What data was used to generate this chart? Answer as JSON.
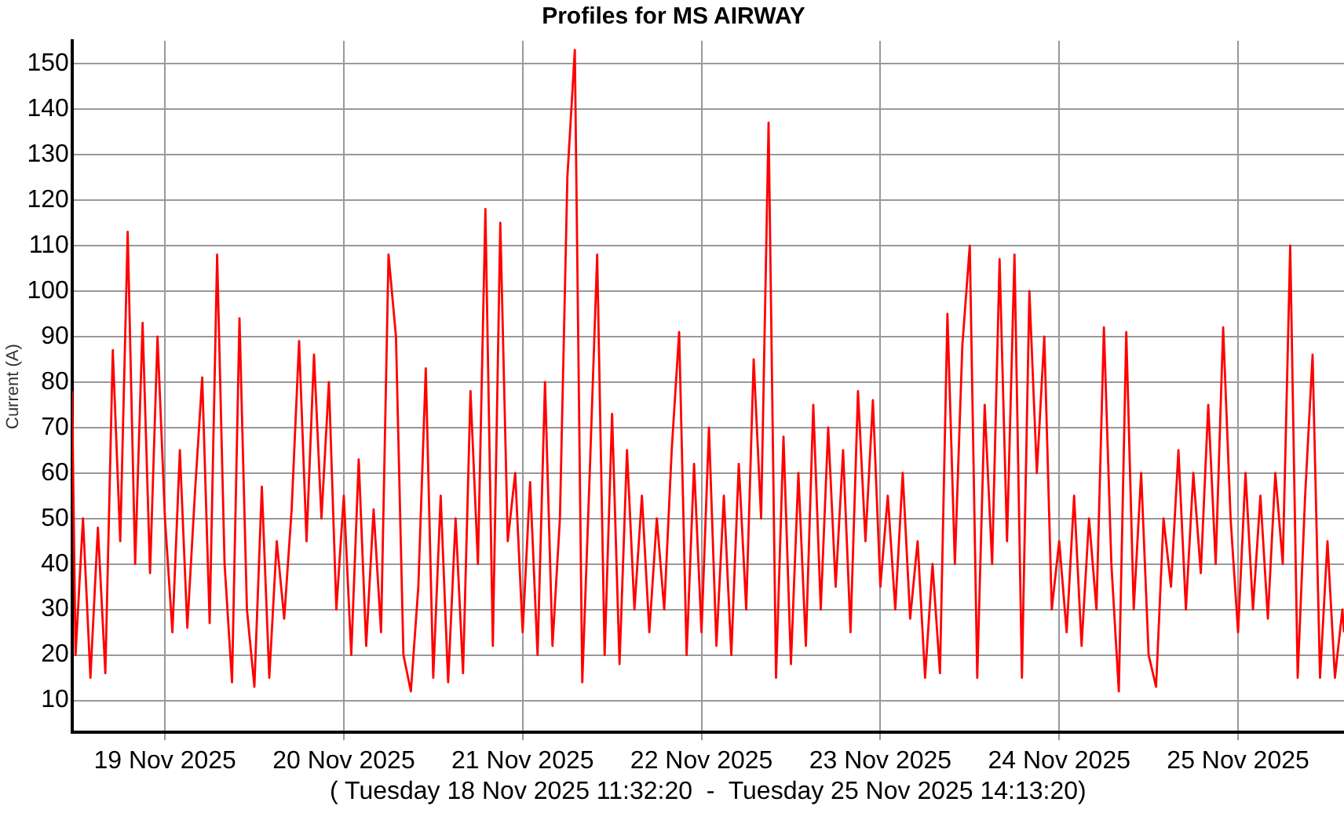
{
  "chart_data": {
    "type": "line",
    "title": "Profiles for MS AIRWAY",
    "xlabel": "( Tuesday 18 Nov 2025 11:32:20  -  Tuesday 25 Nov 2025 14:13:20)",
    "ylabel": "Current (A)",
    "x": [
      "2025-11-18T11:32",
      "2025-11-18T12:00",
      "2025-11-18T13:00",
      "2025-11-18T14:00",
      "2025-11-18T15:00",
      "2025-11-18T16:00",
      "2025-11-18T17:00",
      "2025-11-18T18:00",
      "2025-11-18T19:00",
      "2025-11-18T20:00",
      "2025-11-18T21:00",
      "2025-11-18T22:00",
      "2025-11-18T23:00",
      "2025-11-19T00:00",
      "2025-11-19T01:00",
      "2025-11-19T02:00",
      "2025-11-19T03:00",
      "2025-11-19T04:00",
      "2025-11-19T05:00",
      "2025-11-19T06:00",
      "2025-11-19T07:00",
      "2025-11-19T08:00",
      "2025-11-19T09:00",
      "2025-11-19T10:00",
      "2025-11-19T11:00",
      "2025-11-19T12:00",
      "2025-11-19T13:00",
      "2025-11-19T14:00",
      "2025-11-19T15:00",
      "2025-11-19T16:00",
      "2025-11-19T17:00",
      "2025-11-19T18:00",
      "2025-11-19T19:00",
      "2025-11-19T20:00",
      "2025-11-19T21:00",
      "2025-11-19T22:00",
      "2025-11-19T23:00",
      "2025-11-20T00:00",
      "2025-11-20T01:00",
      "2025-11-20T02:00",
      "2025-11-20T03:00",
      "2025-11-20T04:00",
      "2025-11-20T05:00",
      "2025-11-20T06:00",
      "2025-11-20T07:00",
      "2025-11-20T08:00",
      "2025-11-20T09:00",
      "2025-11-20T10:00",
      "2025-11-20T11:00",
      "2025-11-20T12:00",
      "2025-11-20T13:00",
      "2025-11-20T14:00",
      "2025-11-20T15:00",
      "2025-11-20T16:00",
      "2025-11-20T17:00",
      "2025-11-20T18:00",
      "2025-11-20T19:00",
      "2025-11-20T20:00",
      "2025-11-20T21:00",
      "2025-11-20T22:00",
      "2025-11-20T23:00",
      "2025-11-21T00:00",
      "2025-11-21T01:00",
      "2025-11-21T02:00",
      "2025-11-21T03:00",
      "2025-11-21T04:00",
      "2025-11-21T05:00",
      "2025-11-21T06:00",
      "2025-11-21T07:00",
      "2025-11-21T08:00",
      "2025-11-21T09:00",
      "2025-11-21T10:00",
      "2025-11-21T11:00",
      "2025-11-21T12:00",
      "2025-11-21T13:00",
      "2025-11-21T14:00",
      "2025-11-21T15:00",
      "2025-11-21T16:00",
      "2025-11-21T17:00",
      "2025-11-21T18:00",
      "2025-11-21T19:00",
      "2025-11-21T20:00",
      "2025-11-21T21:00",
      "2025-11-21T22:00",
      "2025-11-21T23:00",
      "2025-11-22T00:00",
      "2025-11-22T01:00",
      "2025-11-22T02:00",
      "2025-11-22T03:00",
      "2025-11-22T04:00",
      "2025-11-22T05:00",
      "2025-11-22T06:00",
      "2025-11-22T07:00",
      "2025-11-22T08:00",
      "2025-11-22T09:00",
      "2025-11-22T10:00",
      "2025-11-22T11:00",
      "2025-11-22T12:00",
      "2025-11-22T13:00",
      "2025-11-22T14:00",
      "2025-11-22T15:00",
      "2025-11-22T16:00",
      "2025-11-22T17:00",
      "2025-11-22T18:00",
      "2025-11-22T19:00",
      "2025-11-22T20:00",
      "2025-11-22T21:00",
      "2025-11-22T22:00",
      "2025-11-22T23:00",
      "2025-11-23T00:00",
      "2025-11-23T01:00",
      "2025-11-23T02:00",
      "2025-11-23T03:00",
      "2025-11-23T04:00",
      "2025-11-23T05:00",
      "2025-11-23T06:00",
      "2025-11-23T07:00",
      "2025-11-23T08:00",
      "2025-11-23T09:00",
      "2025-11-23T10:00",
      "2025-11-23T11:00",
      "2025-11-23T12:00",
      "2025-11-23T13:00",
      "2025-11-23T14:00",
      "2025-11-23T15:00",
      "2025-11-23T16:00",
      "2025-11-23T17:00",
      "2025-11-23T18:00",
      "2025-11-23T19:00",
      "2025-11-23T20:00",
      "2025-11-23T21:00",
      "2025-11-23T22:00",
      "2025-11-23T23:00",
      "2025-11-24T00:00",
      "2025-11-24T01:00",
      "2025-11-24T02:00",
      "2025-11-24T03:00",
      "2025-11-24T04:00",
      "2025-11-24T05:00",
      "2025-11-24T06:00",
      "2025-11-24T07:00",
      "2025-11-24T08:00",
      "2025-11-24T09:00",
      "2025-11-24T10:00",
      "2025-11-24T11:00",
      "2025-11-24T12:00",
      "2025-11-24T13:00",
      "2025-11-24T14:00",
      "2025-11-24T15:00",
      "2025-11-24T16:00",
      "2025-11-24T17:00",
      "2025-11-24T18:00",
      "2025-11-24T19:00",
      "2025-11-24T20:00",
      "2025-11-24T21:00",
      "2025-11-24T22:00",
      "2025-11-24T23:00",
      "2025-11-25T00:00",
      "2025-11-25T01:00",
      "2025-11-25T02:00",
      "2025-11-25T03:00",
      "2025-11-25T04:00",
      "2025-11-25T05:00",
      "2025-11-25T06:00",
      "2025-11-25T07:00",
      "2025-11-25T08:00",
      "2025-11-25T09:00",
      "2025-11-25T10:00",
      "2025-11-25T11:00",
      "2025-11-25T12:00",
      "2025-11-25T13:00",
      "2025-11-25T14:00",
      "2025-11-25T14:13"
    ],
    "series": [
      {
        "color": "#ff0000",
        "values": [
          78,
          20,
          50,
          15,
          48,
          16,
          87,
          45,
          113,
          40,
          93,
          38,
          90,
          50,
          25,
          65,
          26,
          55,
          81,
          27,
          108,
          40,
          14,
          94,
          30,
          13,
          57,
          15,
          45,
          28,
          52,
          89,
          45,
          86,
          50,
          80,
          30,
          55,
          20,
          63,
          22,
          52,
          25,
          108,
          90,
          20,
          12,
          35,
          83,
          15,
          55,
          14,
          50,
          16,
          78,
          40,
          118,
          22,
          115,
          45,
          60,
          25,
          58,
          20,
          80,
          22,
          50,
          125,
          153,
          14,
          60,
          108,
          20,
          73,
          18,
          65,
          30,
          55,
          25,
          50,
          30,
          65,
          91,
          20,
          62,
          25,
          70,
          22,
          55,
          20,
          62,
          30,
          85,
          50,
          137,
          15,
          68,
          18,
          60,
          22,
          75,
          30,
          70,
          35,
          65,
          25,
          78,
          45,
          76,
          35,
          55,
          30,
          60,
          28,
          45,
          15,
          40,
          16,
          95,
          40,
          88,
          110,
          15,
          75,
          40,
          107,
          45,
          108,
          15,
          100,
          60,
          90,
          30,
          45,
          25,
          55,
          22,
          50,
          30,
          92,
          40,
          12,
          91,
          30,
          60,
          20,
          13,
          50,
          35,
          65,
          30,
          60,
          38,
          75,
          40,
          92,
          50,
          25,
          60,
          30,
          55,
          28,
          60,
          40,
          110,
          15,
          55,
          86,
          15,
          45,
          15,
          30,
          25
        ]
      }
    ],
    "xlim": [
      "2025-11-18T11:32",
      "2025-11-25T14:13"
    ],
    "xticks": [
      {
        "value": "2025-11-19",
        "label": "19 Nov 2025"
      },
      {
        "value": "2025-11-20",
        "label": "20 Nov 2025"
      },
      {
        "value": "2025-11-21",
        "label": "21 Nov 2025"
      },
      {
        "value": "2025-11-22",
        "label": "22 Nov 2025"
      },
      {
        "value": "2025-11-23",
        "label": "23 Nov 2025"
      },
      {
        "value": "2025-11-24",
        "label": "24 Nov 2025"
      },
      {
        "value": "2025-11-25",
        "label": "25 Nov 2025"
      }
    ],
    "ylim": [
      3,
      155
    ],
    "yticks": [
      10,
      20,
      30,
      40,
      50,
      60,
      70,
      80,
      90,
      100,
      110,
      120,
      130,
      140,
      150
    ],
    "grid": true,
    "marker": "none",
    "line_style": "solid"
  }
}
